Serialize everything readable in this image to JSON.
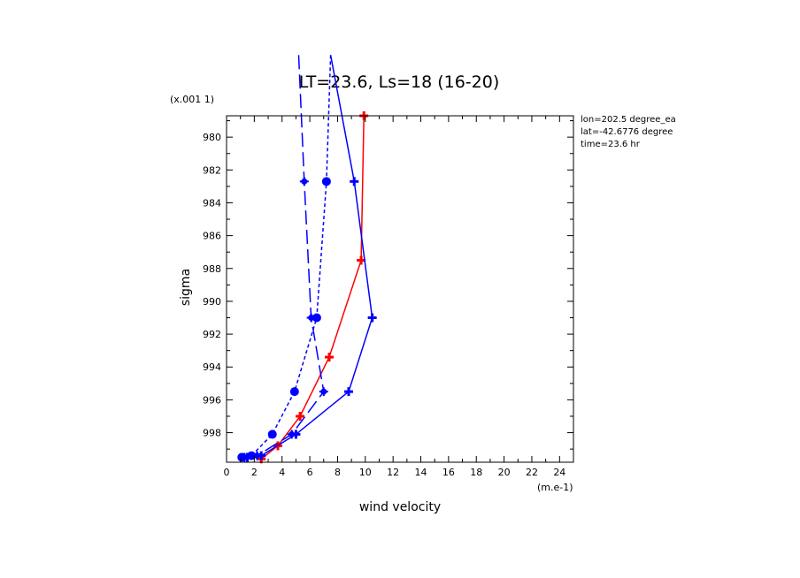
{
  "chart_data": {
    "type": "line",
    "title": "LT=23.6, Ls=18 (16-20)",
    "xlabel": "wind velocity",
    "ylabel": "sigma",
    "x_units": "(m.e-1)",
    "y_scale_label": "(x.001 1)",
    "xlim": [
      0,
      25
    ],
    "ylim": [
      999.8,
      978.7
    ],
    "x_ticks": [
      "0",
      "2",
      "4",
      "6",
      "8",
      "10",
      "12",
      "14",
      "16",
      "18",
      "20",
      "22",
      "24"
    ],
    "y_ticks": [
      "980",
      "982",
      "984",
      "986",
      "988",
      "990",
      "992",
      "994",
      "996",
      "998"
    ],
    "annotations": [
      "lon=202.5 degree_ea",
      "lat=-42.6776 degree",
      "time=23.6 hr"
    ],
    "series": [
      {
        "color": "#ff0000",
        "line": "solid",
        "marker": "plus",
        "points": [
          [
            9.9,
            978.7
          ],
          [
            9.7,
            987.5
          ],
          [
            7.4,
            993.4
          ],
          [
            5.3,
            997.0
          ],
          [
            3.7,
            998.8
          ],
          [
            2.5,
            999.6
          ]
        ]
      },
      {
        "color": "#0000ff",
        "line": "solid",
        "marker": "plus",
        "points": [
          [
            7.5,
            975.0
          ],
          [
            9.2,
            982.7
          ],
          [
            10.5,
            991.0
          ],
          [
            8.8,
            995.5
          ],
          [
            5.0,
            998.1
          ],
          [
            2.5,
            999.4
          ],
          [
            1.5,
            999.5
          ]
        ]
      },
      {
        "color": "#0000ff",
        "line": "dashed",
        "marker": "circle",
        "points": [
          [
            7.5,
            975.0
          ],
          [
            7.2,
            982.7
          ],
          [
            6.5,
            991.0
          ],
          [
            4.9,
            995.5
          ],
          [
            3.3,
            998.1
          ],
          [
            1.8,
            999.4
          ],
          [
            1.1,
            999.5
          ]
        ]
      },
      {
        "color": "#0000ff",
        "line": "longdash",
        "marker": "star",
        "points": [
          [
            5.2,
            975.0
          ],
          [
            5.6,
            982.7
          ],
          [
            6.1,
            991.0
          ],
          [
            7.0,
            995.5
          ],
          [
            4.7,
            998.1
          ],
          [
            2.2,
            999.4
          ],
          [
            1.3,
            999.5
          ]
        ]
      }
    ]
  }
}
